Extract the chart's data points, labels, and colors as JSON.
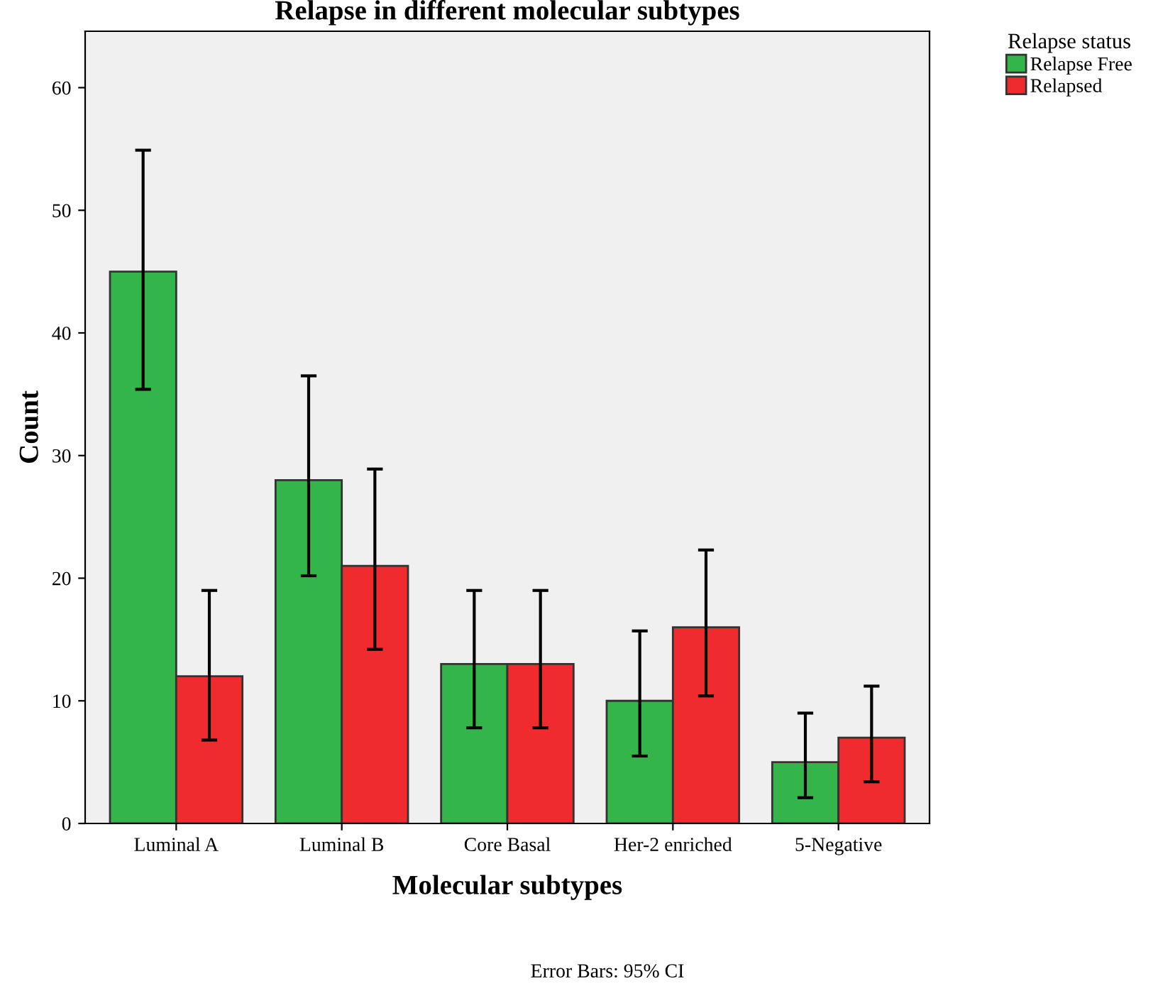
{
  "chart_data": {
    "type": "bar",
    "title": "Relapse in different molecular subtypes",
    "xlabel": "Molecular subtypes",
    "ylabel": "Count",
    "legend_title": "Relapse status",
    "categories": [
      "Luminal A",
      "Luminal B",
      "Core Basal",
      "Her-2 enriched",
      "5-Negative"
    ],
    "series": [
      {
        "name": "Relapse Free",
        "color": "#33b54a",
        "values": [
          45,
          28,
          13,
          10,
          5
        ],
        "errors": [
          [
            35.4,
            54.9
          ],
          [
            20.2,
            36.5
          ],
          [
            7.8,
            19.0
          ],
          [
            5.5,
            15.7
          ],
          [
            2.1,
            9.0
          ]
        ]
      },
      {
        "name": "Relapsed",
        "color": "#ef2b2d",
        "values": [
          12,
          21,
          13,
          16,
          7
        ],
        "errors": [
          [
            6.8,
            19.0
          ],
          [
            14.2,
            28.9
          ],
          [
            7.8,
            19.0
          ],
          [
            10.4,
            22.3
          ],
          [
            3.4,
            11.2
          ]
        ]
      }
    ],
    "ylim": [
      0,
      64.6
    ],
    "yticks": [
      0,
      10,
      20,
      30,
      40,
      50,
      60
    ],
    "grid": false,
    "legend": "top right",
    "annotations": [
      "Error Bars: 95% CI"
    ]
  }
}
